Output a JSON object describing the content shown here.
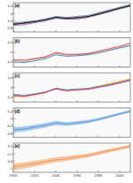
{
  "chart_data": [
    {
      "type": "line",
      "title": "(a)",
      "x": [
        1900,
        1910,
        1920,
        1930,
        1940,
        1950,
        1960,
        1970,
        1980,
        1990,
        2000,
        2010
      ],
      "xlim": [
        1900,
        2010
      ],
      "xticks": [
        1900,
        1920,
        1940,
        1960,
        1980,
        2000
      ],
      "ylim": [
        -1.0,
        0.6
      ],
      "yticks": [
        -0.8,
        -0.4,
        0,
        0.4
      ],
      "tick_labels": "y",
      "series": [
        {
          "color": "#e41a1c",
          "values": [
            -0.55,
            -0.5,
            -0.4,
            -0.35,
            -0.2,
            -0.25,
            -0.2,
            -0.15,
            0.0,
            0.15,
            0.3,
            0.45
          ]
        },
        {
          "color": "#4daf4a",
          "values": [
            -0.6,
            -0.55,
            -0.45,
            -0.3,
            -0.2,
            -0.3,
            -0.25,
            -0.2,
            -0.05,
            0.1,
            0.25,
            0.4
          ]
        },
        {
          "color": "#377eb8",
          "values": [
            -0.5,
            -0.45,
            -0.4,
            -0.3,
            -0.15,
            -0.2,
            -0.15,
            -0.1,
            0.05,
            0.2,
            0.35,
            0.5
          ]
        },
        {
          "color": "#984ea3",
          "values": [
            -0.65,
            -0.6,
            -0.5,
            -0.4,
            -0.25,
            -0.3,
            -0.3,
            -0.2,
            -0.05,
            0.1,
            0.3,
            0.42
          ]
        },
        {
          "color": "#000000",
          "values": [
            -0.58,
            -0.52,
            -0.44,
            -0.34,
            -0.2,
            -0.26,
            -0.22,
            -0.16,
            -0.02,
            0.14,
            0.3,
            0.44
          ]
        }
      ]
    },
    {
      "type": "line",
      "title": "(b)",
      "x": [
        1900,
        1910,
        1920,
        1930,
        1940,
        1950,
        1960,
        1970,
        1980,
        1990,
        2000,
        2010
      ],
      "xlim": [
        1900,
        2010
      ],
      "xticks": [
        1900,
        1920,
        1940,
        1960,
        1980,
        2000
      ],
      "ylim": [
        -0.6,
        0.6
      ],
      "yticks": [
        -0.4,
        0,
        0.4
      ],
      "tick_labels": "y",
      "series": [
        {
          "color": "#999999",
          "values": [
            -0.35,
            -0.38,
            -0.3,
            -0.22,
            -0.05,
            -0.12,
            -0.1,
            -0.08,
            0.0,
            0.1,
            0.2,
            0.3
          ]
        },
        {
          "color": "#e41a1c",
          "values": [
            -0.3,
            -0.32,
            -0.25,
            -0.18,
            0.0,
            -0.08,
            -0.08,
            -0.05,
            0.05,
            0.15,
            0.25,
            0.38
          ]
        },
        {
          "color": "#377eb8",
          "values": [
            -0.4,
            -0.42,
            -0.35,
            -0.26,
            -0.1,
            -0.16,
            -0.14,
            -0.1,
            -0.02,
            0.08,
            0.18,
            0.28
          ]
        }
      ]
    },
    {
      "type": "line",
      "title": "(c)",
      "x": [
        1900,
        1910,
        1920,
        1930,
        1940,
        1950,
        1960,
        1970,
        1980,
        1990,
        2000,
        2010
      ],
      "xlim": [
        1900,
        2010
      ],
      "xticks": [
        1900,
        1920,
        1940,
        1960,
        1980,
        2000
      ],
      "ylim": [
        -0.6,
        0.6
      ],
      "yticks": [
        -0.4,
        0,
        0.4
      ],
      "tick_labels": "y",
      "series": [
        {
          "color": "#4daf4a",
          "values": [
            -0.3,
            -0.35,
            -0.28,
            -0.2,
            -0.05,
            -0.1,
            -0.08,
            -0.06,
            0.02,
            0.12,
            0.22,
            0.32
          ]
        },
        {
          "color": "#ff7f00",
          "values": [
            -0.35,
            -0.38,
            -0.3,
            -0.22,
            -0.02,
            -0.12,
            -0.1,
            -0.05,
            0.05,
            0.15,
            0.25,
            0.35
          ]
        },
        {
          "color": "#377eb8",
          "values": [
            -0.28,
            -0.32,
            -0.26,
            -0.18,
            -0.04,
            -0.1,
            -0.06,
            -0.04,
            0.04,
            0.1,
            0.2,
            0.3
          ]
        },
        {
          "color": "#e7298a",
          "values": [
            -0.32,
            -0.36,
            -0.3,
            -0.2,
            -0.06,
            -0.14,
            -0.1,
            -0.08,
            0.0,
            0.08,
            0.18,
            0.28
          ]
        }
      ]
    },
    {
      "type": "area",
      "title": "(d)",
      "x": [
        1900,
        1910,
        1920,
        1930,
        1940,
        1950,
        1960,
        1970,
        1980,
        1990,
        2000,
        2010
      ],
      "xlim": [
        1900,
        2010
      ],
      "xticks": [
        1900,
        1920,
        1940,
        1960,
        1980,
        2000
      ],
      "ylim": [
        -1.0,
        0.6
      ],
      "yticks": [
        -0.8,
        -0.4,
        0,
        0.4
      ],
      "tick_labels": "y",
      "series": [
        {
          "color": "#4a90d9",
          "values": [
            -0.6,
            -0.55,
            -0.45,
            -0.35,
            -0.22,
            -0.28,
            -0.22,
            -0.15,
            -0.02,
            0.12,
            0.28,
            0.42
          ],
          "error": [
            0.15,
            0.14,
            0.13,
            0.12,
            0.12,
            0.1,
            0.1,
            0.09,
            0.08,
            0.08,
            0.07,
            0.07
          ]
        }
      ]
    },
    {
      "type": "area",
      "title": "(e)",
      "x": [
        1900,
        1910,
        1920,
        1930,
        1940,
        1950,
        1960,
        1970,
        1980,
        1990,
        2000,
        2010
      ],
      "xlim": [
        1900,
        2010
      ],
      "xticks": [
        1900,
        1920,
        1940,
        1960,
        1980,
        2000
      ],
      "ylim": [
        -1.2,
        0.4
      ],
      "yticks": [
        -1.0,
        -0.6,
        -0.2,
        0.2
      ],
      "tick_labels": true,
      "series": [
        {
          "color": "#f08a3c",
          "values": [
            -0.9,
            -0.82,
            -0.72,
            -0.62,
            -0.52,
            -0.45,
            -0.36,
            -0.28,
            -0.15,
            -0.02,
            0.1,
            0.22
          ],
          "error": [
            0.18,
            0.17,
            0.16,
            0.15,
            0.14,
            0.13,
            0.12,
            0.11,
            0.1,
            0.1,
            0.09,
            0.09
          ]
        }
      ]
    }
  ]
}
